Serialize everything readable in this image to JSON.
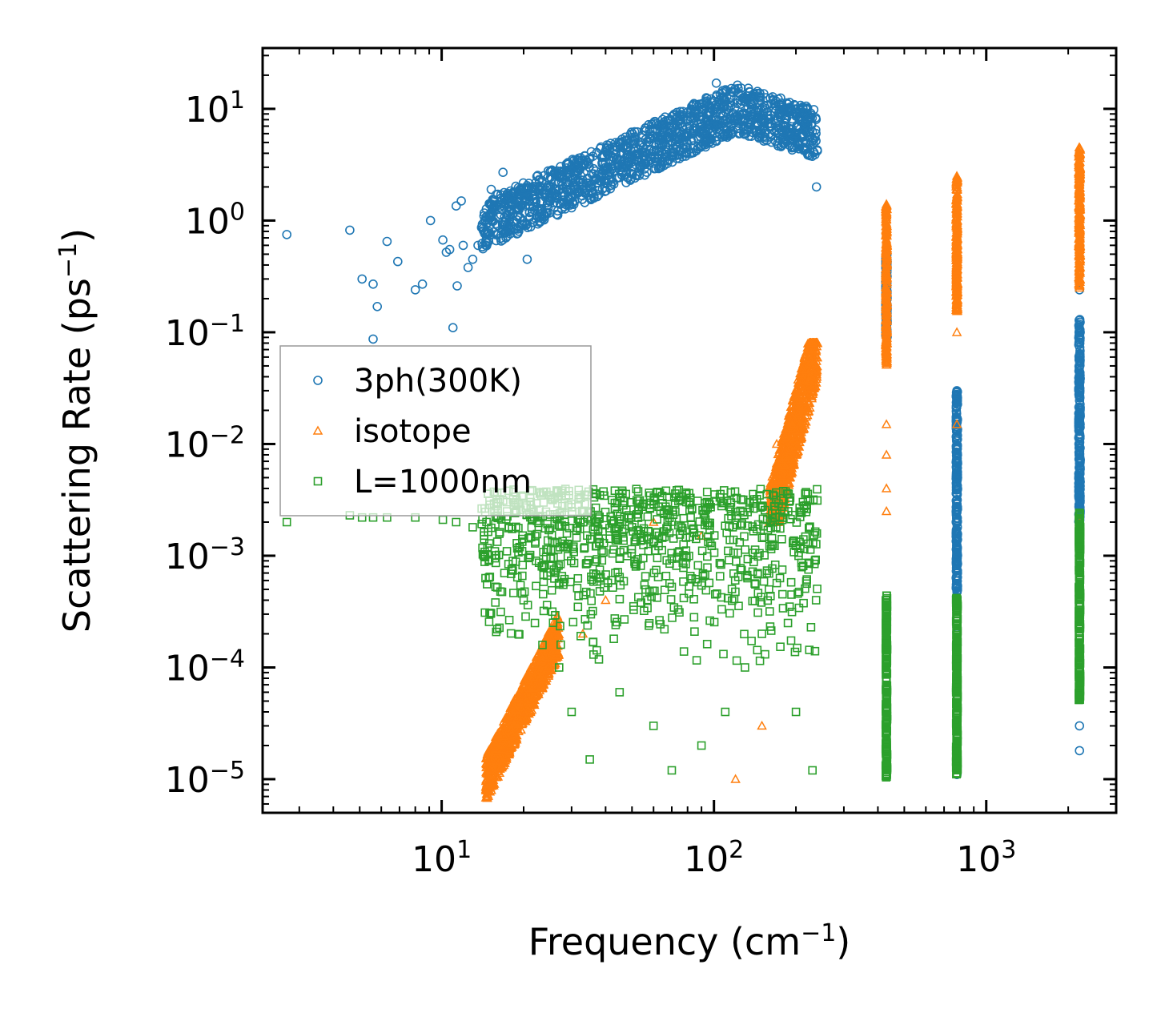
{
  "chart_data": {
    "type": "scatter",
    "title": "",
    "xlabel": "Frequency (cm",
    "xlabel_sup": "−1",
    "xlabel_tail": ")",
    "ylabel": "Scattering Rate (ps",
    "ylabel_sup": "−1",
    "ylabel_tail": ")",
    "xscale": "log",
    "yscale": "log",
    "xlim": [
      2.2,
      3000
    ],
    "ylim": [
      5e-06,
      35
    ],
    "x_ticks": [
      {
        "value": 10,
        "base": "10",
        "exp": "1"
      },
      {
        "value": 100,
        "base": "10",
        "exp": "2"
      },
      {
        "value": 1000,
        "base": "10",
        "exp": "3"
      }
    ],
    "y_ticks": [
      {
        "value": 10,
        "base": "10",
        "exp": "1"
      },
      {
        "value": 1,
        "base": "10",
        "exp": "0"
      },
      {
        "value": 0.1,
        "base": "10",
        "exp": "−1"
      },
      {
        "value": 0.01,
        "base": "10",
        "exp": "−2"
      },
      {
        "value": 0.001,
        "base": "10",
        "exp": "−3"
      },
      {
        "value": 0.0001,
        "base": "10",
        "exp": "−4"
      },
      {
        "value": 1e-05,
        "base": "10",
        "exp": "−5"
      }
    ],
    "legend_position": "center-left",
    "series": [
      {
        "name": "3ph(300K)",
        "marker": "circle",
        "color": "#1f77b4",
        "points": [
          [
            2.7,
            0.75
          ],
          [
            4.6,
            0.82
          ],
          [
            5.1,
            0.3
          ],
          [
            5.6,
            0.27
          ],
          [
            5.8,
            0.17
          ],
          [
            5.6,
            0.087
          ],
          [
            6.3,
            0.65
          ],
          [
            6.9,
            0.43
          ],
          [
            8.0,
            0.24
          ],
          [
            8.5,
            0.27
          ],
          [
            9.1,
            1.0
          ],
          [
            10.1,
            0.67
          ],
          [
            10.4,
            0.52
          ],
          [
            10.7,
            0.55
          ],
          [
            11.0,
            0.11
          ],
          [
            11.3,
            1.35
          ],
          [
            11.4,
            0.26
          ],
          [
            11.8,
            1.5
          ],
          [
            12.0,
            0.6
          ],
          [
            12.5,
            0.38
          ],
          [
            13.0,
            0.45
          ],
          [
            13.6,
            0.6
          ],
          [
            14.3,
            1.1
          ],
          [
            14.9,
            0.8
          ],
          [
            15.2,
            1.9
          ],
          [
            16.0,
            0.75
          ],
          [
            16.8,
            2.7
          ],
          [
            17.5,
            1.6
          ],
          [
            18.3,
            0.95
          ],
          [
            19.4,
            1.8
          ],
          [
            20.6,
            0.45
          ],
          [
            21.5,
            1.2
          ],
          [
            22.9,
            2.0
          ],
          [
            24.0,
            1.1
          ],
          [
            26.0,
            1.6
          ],
          [
            28.0,
            2.4
          ],
          [
            30.0,
            1.3
          ],
          [
            33.0,
            2.2
          ],
          [
            36.0,
            1.8
          ],
          [
            40.0,
            3.0
          ],
          [
            44.0,
            2.4
          ],
          [
            48.0,
            4.6
          ],
          [
            53.0,
            4.0
          ],
          [
            58.0,
            6.0
          ],
          [
            64.0,
            4.8
          ],
          [
            70.0,
            7.0
          ],
          [
            78.0,
            6.0
          ],
          [
            86.0,
            9.0
          ],
          [
            95.0,
            8.0
          ],
          [
            102.0,
            17.0
          ],
          [
            110.0,
            12.0
          ],
          [
            125.0,
            11.0
          ],
          [
            140.0,
            10.0
          ],
          [
            160.0,
            7.0
          ],
          [
            180.0,
            5.0
          ],
          [
            200.0,
            6.0
          ],
          [
            220.0,
            4.0
          ],
          [
            238.0,
            2.0
          ],
          [
            430,
            0.3
          ],
          [
            430,
            0.1
          ],
          [
            780,
            0.03
          ],
          [
            780,
            0.001
          ],
          [
            780,
            0.0002
          ],
          [
            780,
            1.1e-05
          ],
          [
            2200,
            0.24
          ],
          [
            2200,
            0.1
          ],
          [
            2200,
            0.01
          ],
          [
            2200,
            0.001
          ],
          [
            2200,
            0.0001
          ],
          [
            2200,
            3e-05
          ],
          [
            2200,
            1.8e-05
          ]
        ],
        "bands": [
          {
            "x_from": 14,
            "x_to": 240,
            "y_at_start": 0.9,
            "y_at_end": 6.0,
            "y_mid": 10.0,
            "spread": 0.22
          },
          {
            "x": 430,
            "y_from": 0.09,
            "y_to": 0.5
          },
          {
            "x": 780,
            "y_from": 0.00042,
            "y_to": 0.03
          },
          {
            "x": 2200,
            "y_from": 0.002,
            "y_to": 0.13
          }
        ]
      },
      {
        "name": "isotope",
        "marker": "triangle",
        "color": "#ff7f0e",
        "points": [
          [
            15,
            1e-05
          ],
          [
            17,
            2e-05
          ],
          [
            20,
            4e-05
          ],
          [
            23,
            8e-05
          ],
          [
            26,
            0.00015
          ],
          [
            33,
            0.0002
          ],
          [
            40,
            0.0004
          ],
          [
            60,
            0.002
          ],
          [
            90,
            0.0015
          ],
          [
            120,
            1e-05
          ],
          [
            150,
            3e-05
          ],
          [
            170,
            0.01
          ],
          [
            200,
            0.03
          ],
          [
            230,
            0.08
          ],
          [
            430,
            0.0025
          ],
          [
            430,
            0.004
          ],
          [
            430,
            0.008
          ],
          [
            430,
            0.015
          ],
          [
            430,
            0.3
          ],
          [
            430,
            1.4
          ],
          [
            780,
            0.015
          ],
          [
            780,
            0.1
          ],
          [
            780,
            2.5
          ],
          [
            2200,
            0.002
          ],
          [
            2200,
            0.25
          ],
          [
            2200,
            4.5
          ]
        ],
        "bands": [
          {
            "x_from": 14.5,
            "x_to": 27,
            "y_from": 1e-05,
            "y_to": 0.0002
          },
          {
            "x": 430,
            "y_from": 0.05,
            "y_to": 1.4
          },
          {
            "x": 780,
            "y_from": 0.15,
            "y_to": 2.5
          },
          {
            "x": 2200,
            "y_from": 0.25,
            "y_to": 4.5
          },
          {
            "x_from": 160,
            "x_to": 240,
            "y_from": 0.002,
            "y_to": 0.08
          }
        ]
      },
      {
        "name": "L=1000nm",
        "marker": "square",
        "color": "#2ca02c",
        "points": [
          [
            2.7,
            0.002
          ],
          [
            4.6,
            0.0023
          ],
          [
            5.1,
            0.0022
          ],
          [
            5.6,
            0.0022
          ],
          [
            6.3,
            0.0022
          ],
          [
            8.0,
            0.0022
          ],
          [
            10.1,
            0.0021
          ],
          [
            11.3,
            0.002
          ],
          [
            13.0,
            0.0018
          ],
          [
            14.9,
            0.0009
          ],
          [
            16.0,
            0.00022
          ],
          [
            17.0,
            0.0007
          ],
          [
            20.0,
            0.0004
          ],
          [
            22.0,
            0.00025
          ],
          [
            27.0,
            0.0001
          ],
          [
            30.0,
            4e-05
          ],
          [
            35.0,
            1.5e-05
          ],
          [
            45.0,
            6e-05
          ],
          [
            60.0,
            3e-05
          ],
          [
            70.0,
            1.2e-05
          ],
          [
            90.0,
            2e-05
          ],
          [
            110.0,
            4e-05
          ],
          [
            130.0,
            0.0001
          ],
          [
            150.0,
            0.0002
          ],
          [
            200.0,
            4e-05
          ],
          [
            230.0,
            1.2e-05
          ]
        ],
        "bands": [
          {
            "x_from": 14,
            "x_to": 240,
            "y_from": 0.0001,
            "y_to": 0.004
          },
          {
            "x": 430,
            "y_from": 1e-05,
            "y_to": 0.00045
          },
          {
            "x": 780,
            "y_from": 1.1e-05,
            "y_to": 0.00042
          },
          {
            "x": 2200,
            "y_from": 5e-05,
            "y_to": 0.0025
          }
        ]
      }
    ]
  }
}
